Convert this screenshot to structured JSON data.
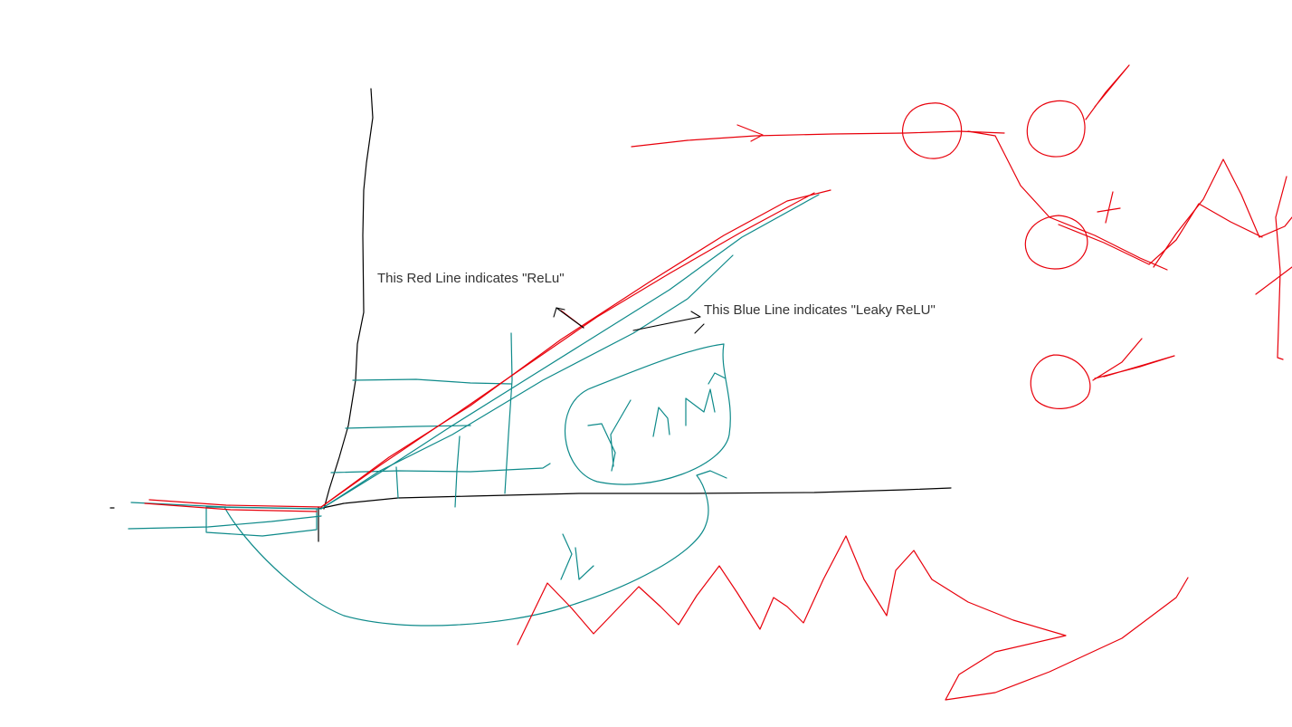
{
  "annotations": {
    "relu_label": "This Red Line indicates \"ReLu\"",
    "leaky_label": "This Blue Line indicates \"Leaky ReLU\""
  },
  "colors": {
    "background": "#ffffff",
    "axis": "#000000",
    "relu_line": "#e8000b",
    "leaky_line": "#0e8a8a",
    "text": "#333333"
  }
}
